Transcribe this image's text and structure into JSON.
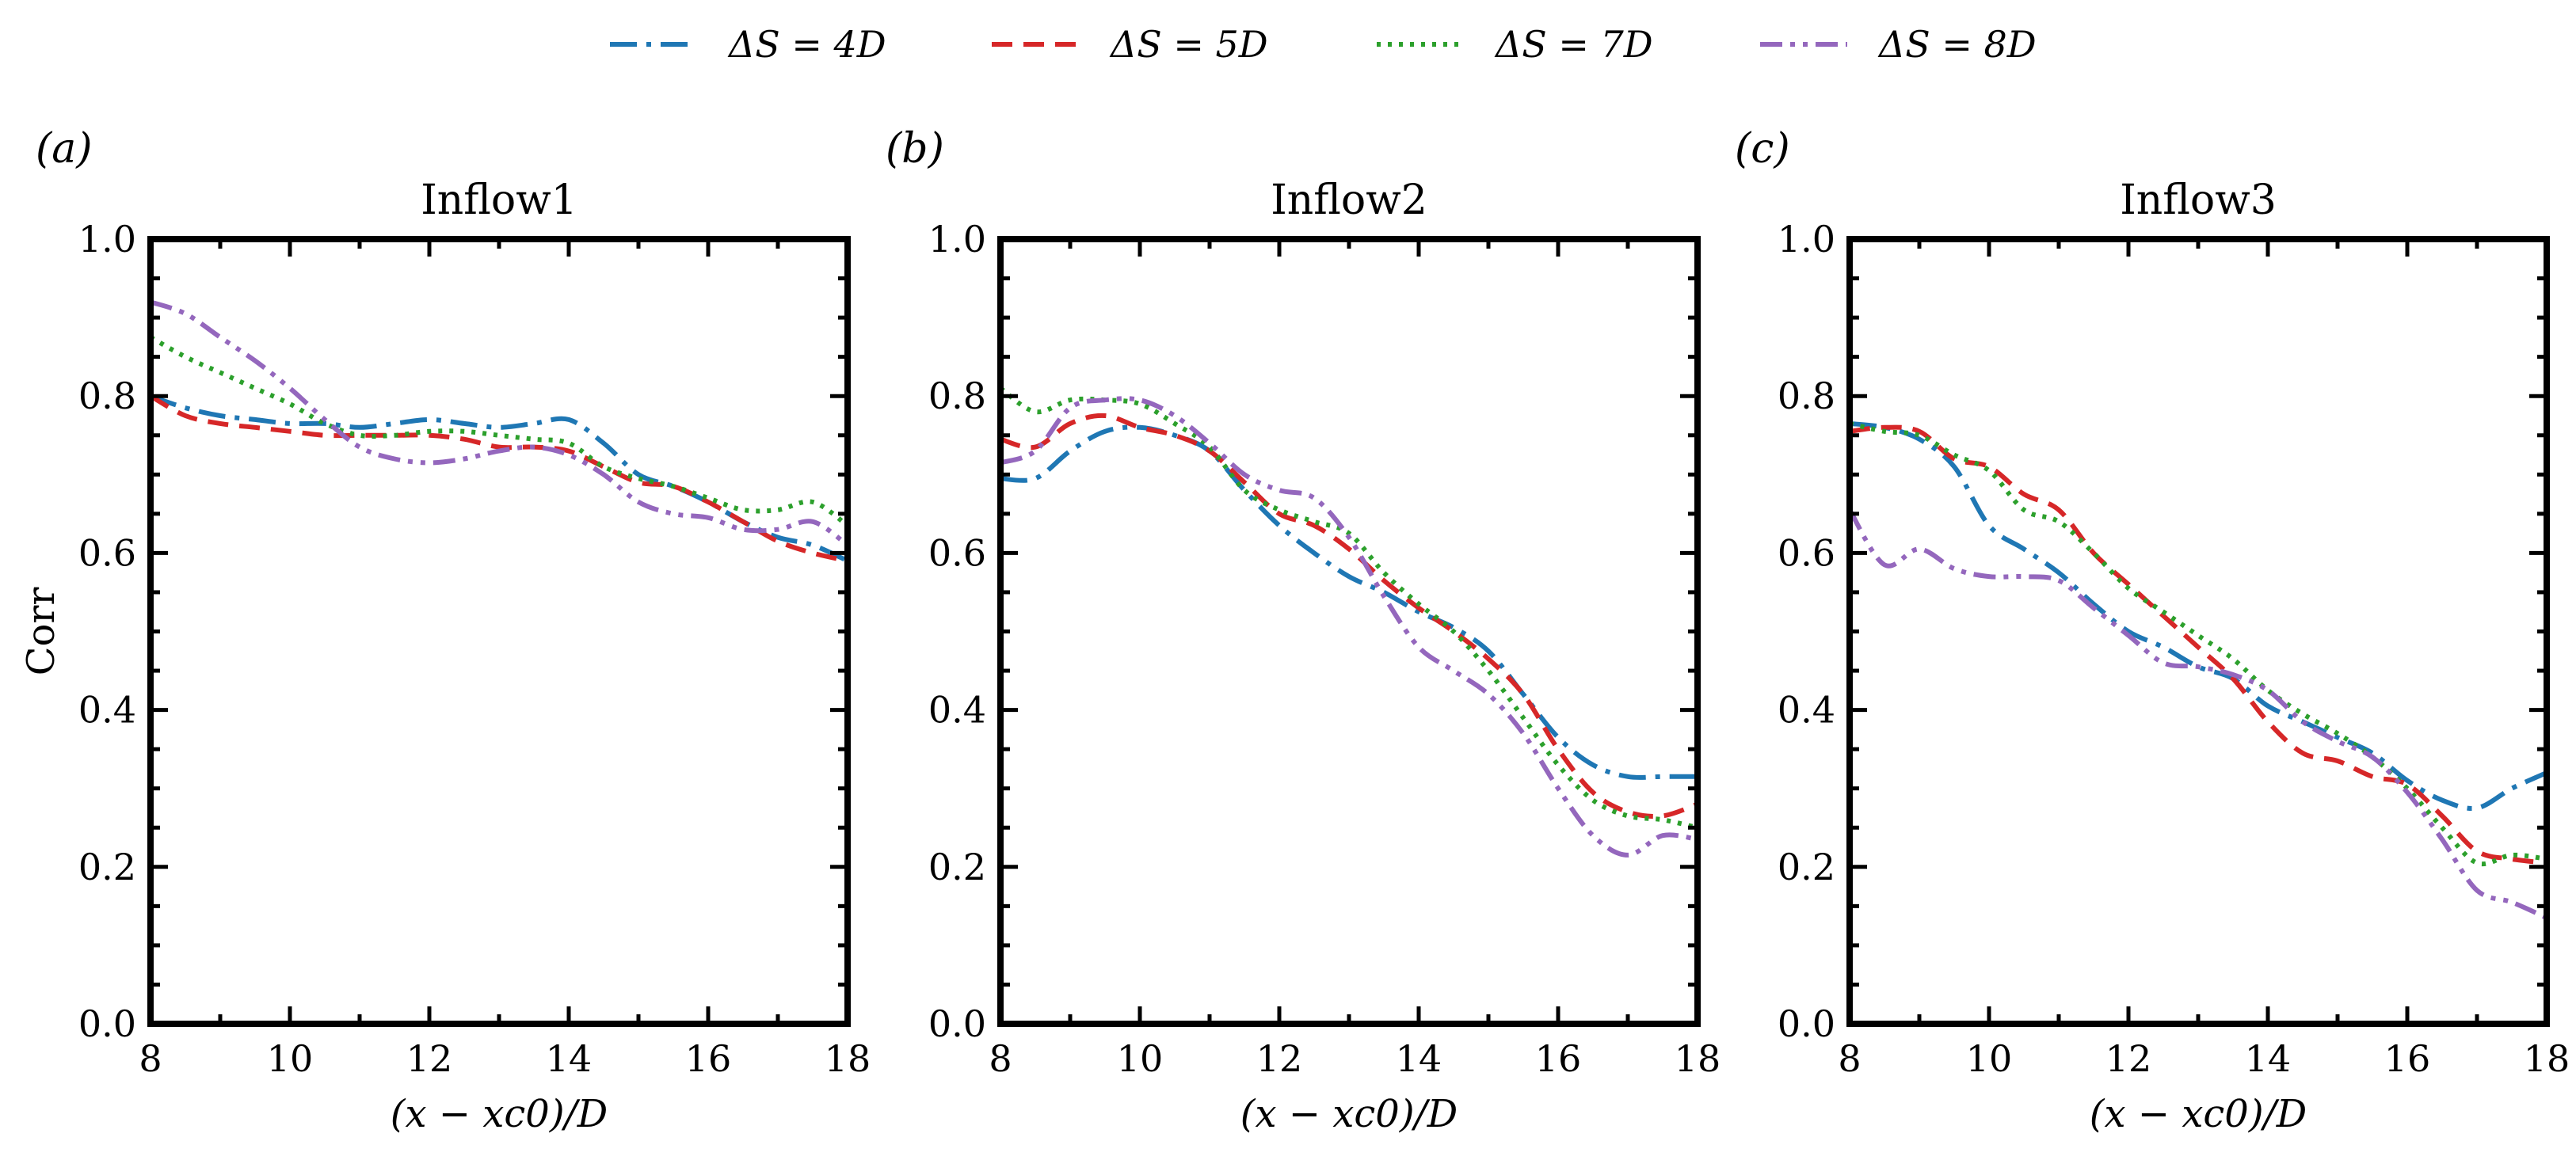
{
  "figure": {
    "legend": [
      {
        "label": "ΔS = 4D",
        "color": "#1f77b4",
        "dash": "dashdot"
      },
      {
        "label": "ΔS = 5D",
        "color": "#d62728",
        "dash": "dashed"
      },
      {
        "label": "ΔS = 7D",
        "color": "#2ca02c",
        "dash": "dotted"
      },
      {
        "label": "ΔS = 8D",
        "color": "#9467bd",
        "dash": "dashdotdot"
      }
    ],
    "ylabel": "Corr",
    "xlabel": "(x − xc0)/D"
  },
  "chart_data": [
    {
      "type": "line",
      "panel": "(a)",
      "title": "Inflow1",
      "xlabel": "(x − xc0)/D",
      "ylabel": "Corr",
      "xlim": [
        8,
        18
      ],
      "ylim": [
        0,
        1
      ],
      "xticks": [
        "8",
        "10",
        "12",
        "14",
        "16",
        "18"
      ],
      "yticks": [
        "0.0",
        "0.2",
        "0.4",
        "0.6",
        "0.8",
        "1.0"
      ],
      "series": [
        {
          "name": "ΔS = 4D",
          "x": [
            8,
            8.5,
            9,
            9.5,
            10,
            10.5,
            11,
            11.5,
            12,
            12.5,
            13,
            13.5,
            14,
            14.5,
            15,
            15.5,
            16,
            16.5,
            17,
            17.5,
            18
          ],
          "y": [
            0.8,
            0.785,
            0.775,
            0.77,
            0.765,
            0.765,
            0.76,
            0.765,
            0.77,
            0.765,
            0.76,
            0.765,
            0.77,
            0.74,
            0.7,
            0.685,
            0.665,
            0.64,
            0.62,
            0.61,
            0.59
          ]
        },
        {
          "name": "ΔS = 5D",
          "x": [
            8,
            8.5,
            9,
            9.5,
            10,
            10.5,
            11,
            11.5,
            12,
            12.5,
            13,
            13.5,
            14,
            14.5,
            15,
            15.5,
            16,
            16.5,
            17,
            17.5,
            18
          ],
          "y": [
            0.8,
            0.775,
            0.765,
            0.76,
            0.755,
            0.75,
            0.75,
            0.75,
            0.75,
            0.745,
            0.735,
            0.735,
            0.73,
            0.71,
            0.69,
            0.685,
            0.665,
            0.64,
            0.615,
            0.6,
            0.59
          ]
        },
        {
          "name": "ΔS = 7D",
          "x": [
            8,
            8.5,
            9,
            9.5,
            10,
            10.5,
            11,
            11.5,
            12,
            12.5,
            13,
            13.5,
            14,
            14.5,
            15,
            15.5,
            16,
            16.5,
            17,
            17.5,
            18
          ],
          "y": [
            0.875,
            0.85,
            0.83,
            0.81,
            0.79,
            0.765,
            0.75,
            0.75,
            0.755,
            0.755,
            0.75,
            0.745,
            0.74,
            0.71,
            0.695,
            0.685,
            0.67,
            0.655,
            0.655,
            0.665,
            0.635
          ]
        },
        {
          "name": "ΔS = 8D",
          "x": [
            8,
            8.5,
            9,
            9.5,
            10,
            10.5,
            11,
            11.5,
            12,
            12.5,
            13,
            13.5,
            14,
            14.5,
            15,
            15.5,
            16,
            16.5,
            17,
            17.5,
            18
          ],
          "y": [
            0.92,
            0.905,
            0.875,
            0.845,
            0.81,
            0.77,
            0.735,
            0.72,
            0.715,
            0.72,
            0.73,
            0.735,
            0.725,
            0.7,
            0.665,
            0.65,
            0.645,
            0.63,
            0.63,
            0.64,
            0.61
          ]
        }
      ]
    },
    {
      "type": "line",
      "panel": "(b)",
      "title": "Inflow2",
      "xlabel": "(x − xc0)/D",
      "xlim": [
        8,
        18
      ],
      "ylim": [
        0,
        1
      ],
      "xticks": [
        "8",
        "10",
        "12",
        "14",
        "16",
        "18"
      ],
      "yticks": [
        "0.0",
        "0.2",
        "0.4",
        "0.6",
        "0.8",
        "1.0"
      ],
      "series": [
        {
          "name": "ΔS = 4D",
          "x": [
            8,
            8.5,
            9,
            9.5,
            10,
            10.5,
            11,
            11.5,
            12,
            12.5,
            13,
            13.5,
            14,
            14.5,
            15,
            15.5,
            16,
            16.5,
            17,
            17.5,
            18
          ],
          "y": [
            0.695,
            0.695,
            0.73,
            0.755,
            0.76,
            0.75,
            0.73,
            0.68,
            0.635,
            0.6,
            0.57,
            0.55,
            0.525,
            0.505,
            0.475,
            0.42,
            0.365,
            0.33,
            0.315,
            0.315,
            0.315
          ]
        },
        {
          "name": "ΔS = 5D",
          "x": [
            8,
            8.5,
            9,
            9.5,
            10,
            10.5,
            11,
            11.5,
            12,
            12.5,
            13,
            13.5,
            14,
            14.5,
            15,
            15.5,
            16,
            16.5,
            17,
            17.5,
            18
          ],
          "y": [
            0.745,
            0.735,
            0.765,
            0.775,
            0.76,
            0.75,
            0.73,
            0.69,
            0.65,
            0.635,
            0.605,
            0.565,
            0.53,
            0.5,
            0.465,
            0.42,
            0.35,
            0.295,
            0.27,
            0.265,
            0.28
          ]
        },
        {
          "name": "ΔS = 7D",
          "x": [
            8,
            8.5,
            9,
            9.5,
            10,
            10.5,
            11,
            11.5,
            12,
            12.5,
            13,
            13.5,
            14,
            14.5,
            15,
            15.5,
            16,
            16.5,
            17,
            17.5,
            18
          ],
          "y": [
            0.81,
            0.78,
            0.795,
            0.795,
            0.79,
            0.765,
            0.735,
            0.68,
            0.655,
            0.64,
            0.625,
            0.575,
            0.535,
            0.5,
            0.45,
            0.39,
            0.33,
            0.285,
            0.265,
            0.26,
            0.25
          ]
        },
        {
          "name": "ΔS = 8D",
          "x": [
            8,
            8.5,
            9,
            9.5,
            10,
            10.5,
            11,
            11.5,
            12,
            12.5,
            13,
            13.5,
            14,
            14.5,
            15,
            15.5,
            16,
            16.5,
            17,
            17.5,
            18
          ],
          "y": [
            0.715,
            0.73,
            0.785,
            0.795,
            0.795,
            0.775,
            0.74,
            0.7,
            0.68,
            0.67,
            0.62,
            0.545,
            0.48,
            0.45,
            0.42,
            0.37,
            0.3,
            0.24,
            0.215,
            0.24,
            0.235
          ]
        }
      ]
    },
    {
      "type": "line",
      "panel": "(c)",
      "title": "Inflow3",
      "xlabel": "(x − xc0)/D",
      "xlim": [
        8,
        18
      ],
      "ylim": [
        0,
        1
      ],
      "xticks": [
        "8",
        "10",
        "12",
        "14",
        "16",
        "18"
      ],
      "yticks": [
        "0.0",
        "0.2",
        "0.4",
        "0.6",
        "0.8",
        "1.0"
      ],
      "series": [
        {
          "name": "ΔS = 4D",
          "x": [
            8,
            8.5,
            9,
            9.5,
            10,
            10.5,
            11,
            11.5,
            12,
            12.5,
            13,
            13.5,
            14,
            14.5,
            15,
            15.5,
            16,
            16.5,
            17,
            17.5,
            18
          ],
          "y": [
            0.765,
            0.76,
            0.745,
            0.71,
            0.635,
            0.605,
            0.575,
            0.535,
            0.5,
            0.48,
            0.455,
            0.44,
            0.405,
            0.385,
            0.365,
            0.345,
            0.31,
            0.285,
            0.275,
            0.3,
            0.32
          ]
        },
        {
          "name": "ΔS = 5D",
          "x": [
            8,
            8.5,
            9,
            9.5,
            10,
            10.5,
            11,
            11.5,
            12,
            12.5,
            13,
            13.5,
            14,
            14.5,
            15,
            15.5,
            16,
            16.5,
            17,
            17.5,
            18
          ],
          "y": [
            0.755,
            0.76,
            0.755,
            0.72,
            0.71,
            0.675,
            0.655,
            0.6,
            0.56,
            0.52,
            0.48,
            0.44,
            0.385,
            0.345,
            0.335,
            0.315,
            0.305,
            0.265,
            0.22,
            0.21,
            0.205
          ]
        },
        {
          "name": "ΔS = 7D",
          "x": [
            8,
            8.5,
            9,
            9.5,
            10,
            10.5,
            11,
            11.5,
            12,
            12.5,
            13,
            13.5,
            14,
            14.5,
            15,
            15.5,
            16,
            16.5,
            17,
            17.5,
            18
          ],
          "y": [
            0.765,
            0.755,
            0.75,
            0.725,
            0.705,
            0.655,
            0.64,
            0.6,
            0.555,
            0.525,
            0.495,
            0.465,
            0.425,
            0.395,
            0.37,
            0.34,
            0.3,
            0.25,
            0.205,
            0.215,
            0.21
          ]
        },
        {
          "name": "ΔS = 8D",
          "x": [
            8,
            8.5,
            9,
            9.5,
            10,
            10.5,
            11,
            11.5,
            12,
            12.5,
            13,
            13.5,
            14,
            14.5,
            15,
            15.5,
            16,
            16.5,
            17,
            17.5,
            18
          ],
          "y": [
            0.655,
            0.585,
            0.605,
            0.58,
            0.57,
            0.57,
            0.565,
            0.53,
            0.495,
            0.46,
            0.455,
            0.445,
            0.425,
            0.385,
            0.36,
            0.34,
            0.295,
            0.235,
            0.17,
            0.155,
            0.135
          ]
        }
      ]
    }
  ]
}
